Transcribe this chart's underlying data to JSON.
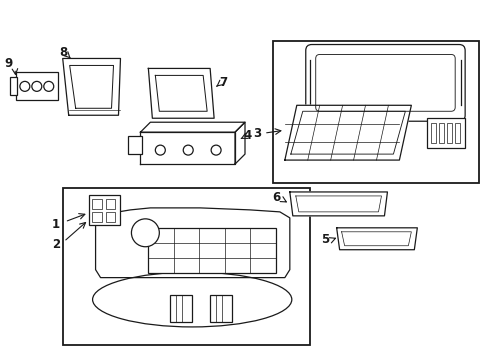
{
  "bg_color": "#ffffff",
  "line_color": "#1a1a1a",
  "figsize": [
    4.89,
    3.6
  ],
  "dpi": 100,
  "label_fontsize": 8.5,
  "lw": 0.9
}
